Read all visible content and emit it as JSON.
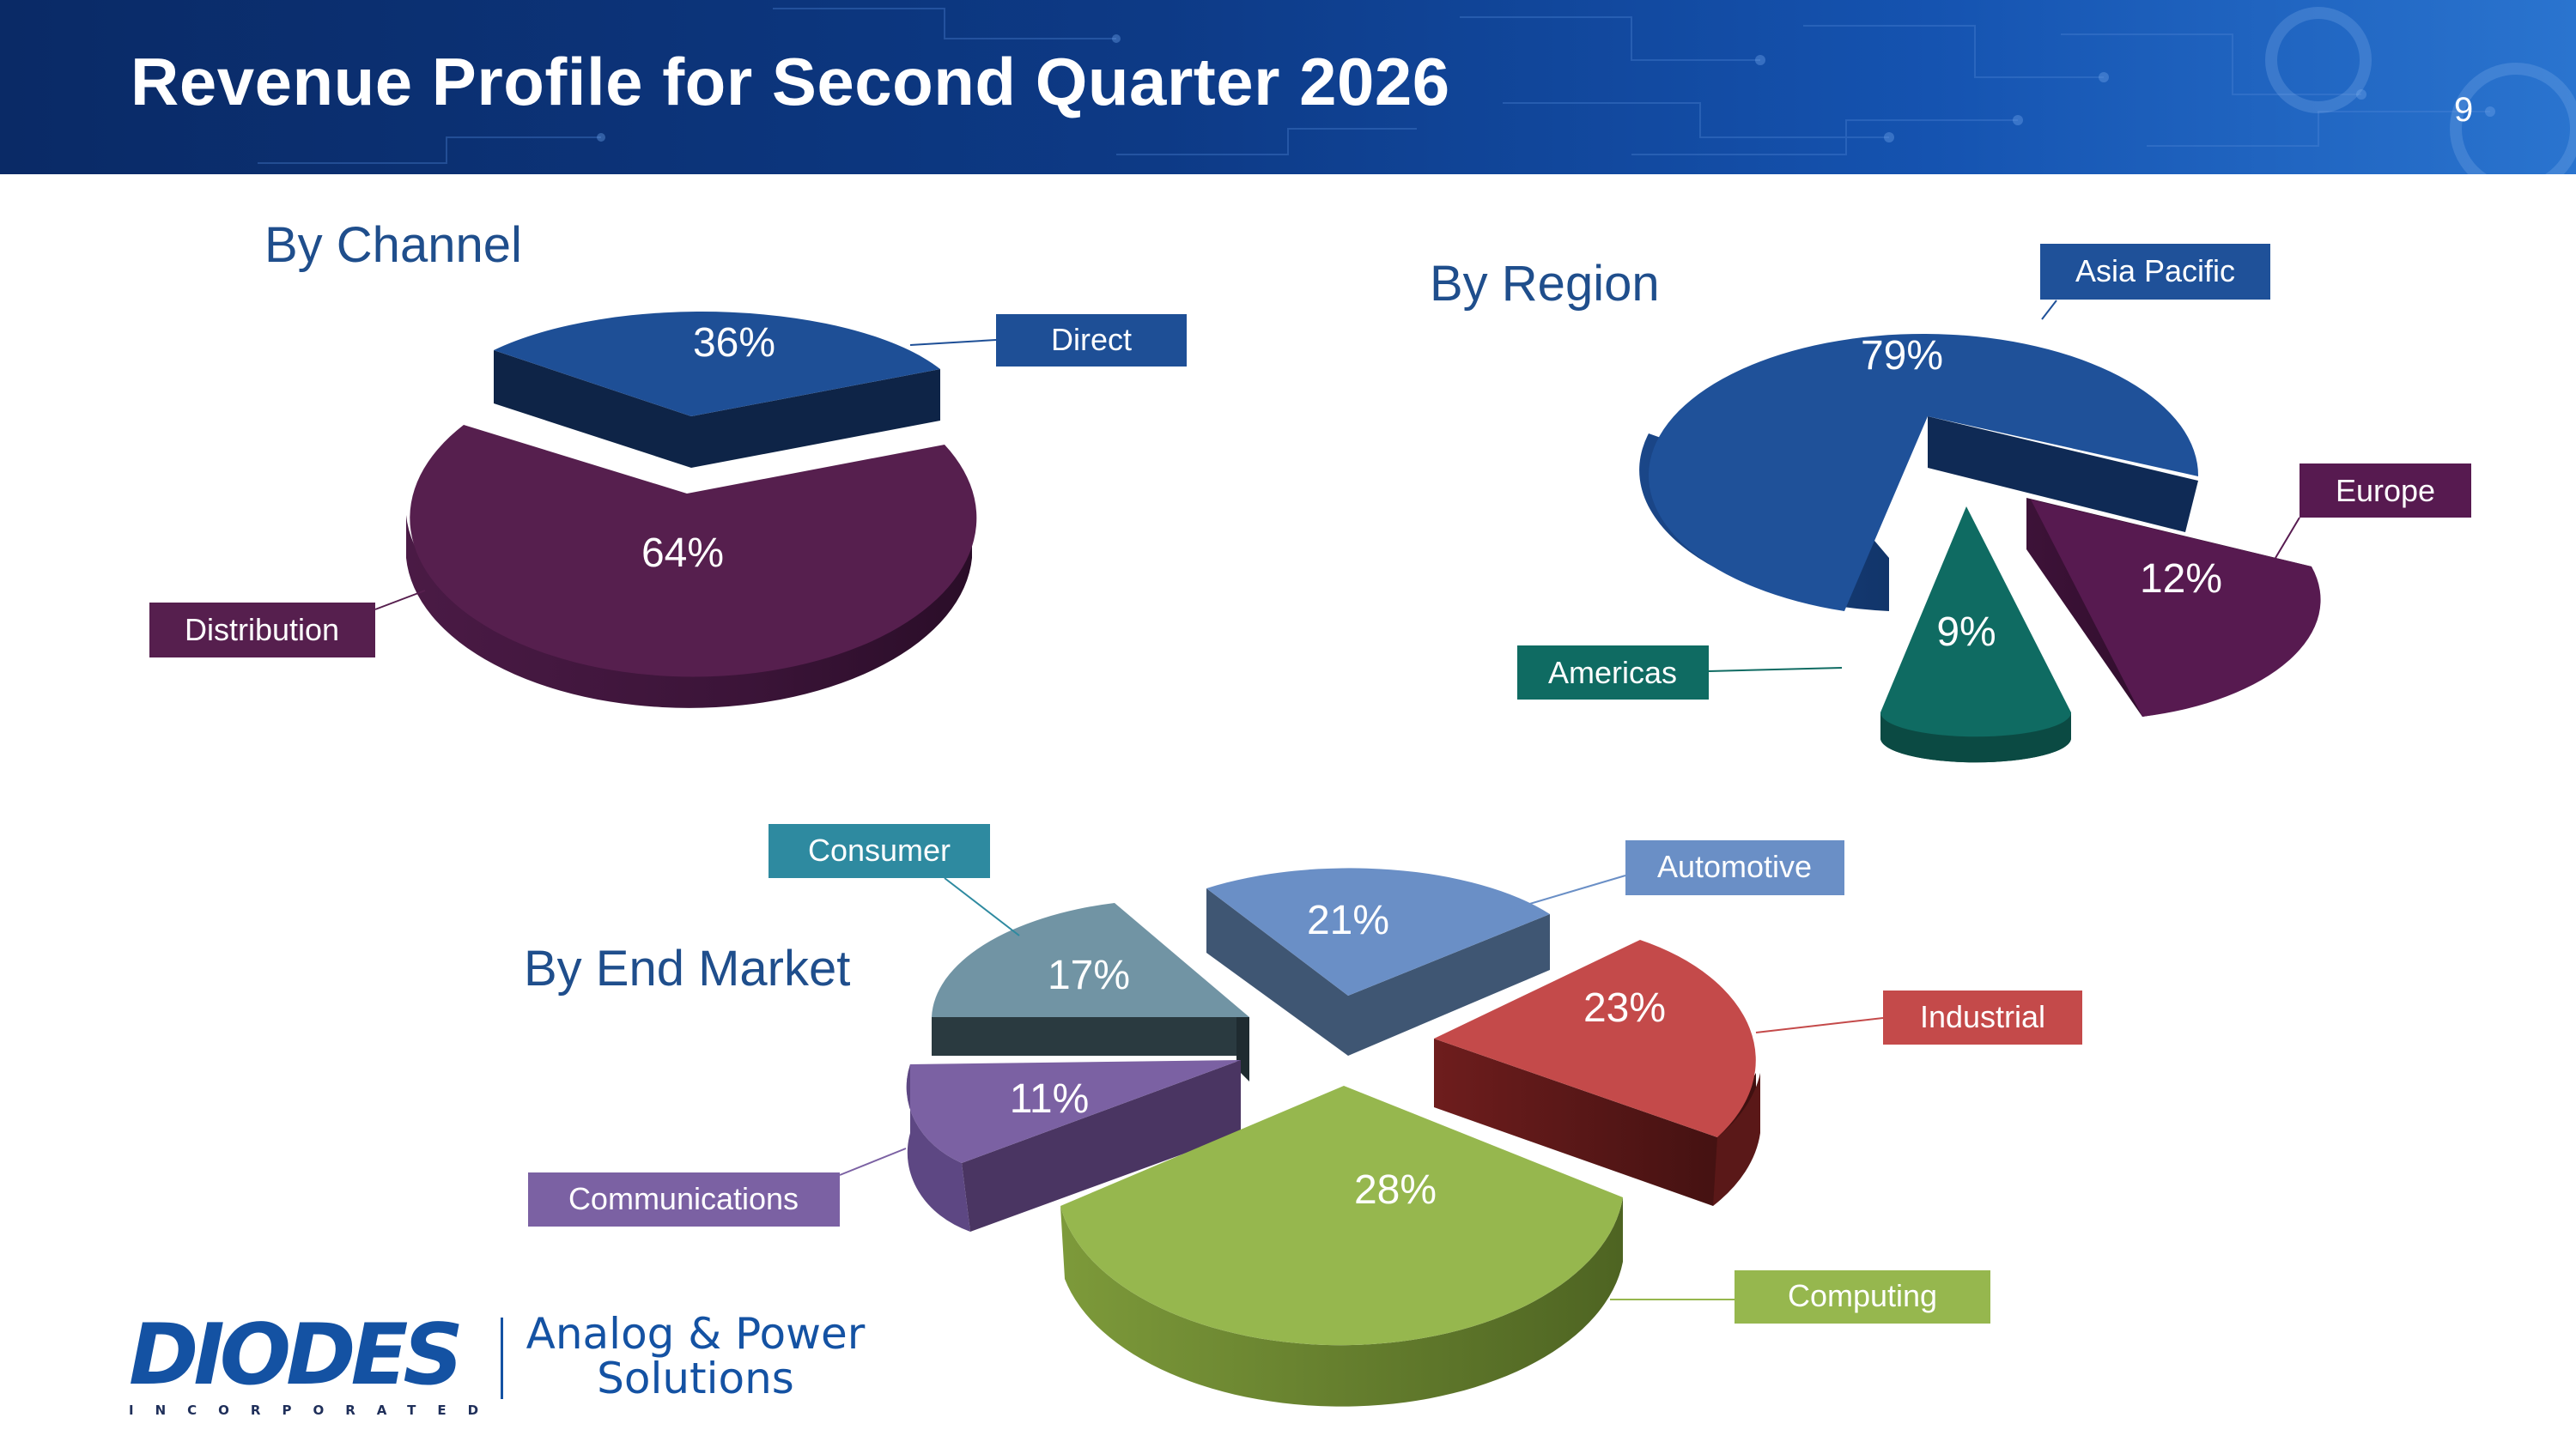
{
  "slide": {
    "title": "Revenue Profile for Second Quarter 2026",
    "page_number": "9"
  },
  "footer": {
    "logo_text": "DIODES",
    "logo_subtext": "INCORPORATED",
    "tagline_line1": "Analog & Power",
    "tagline_line2": "Solutions"
  },
  "chart_data": [
    {
      "type": "pie",
      "style": "3d-exploded",
      "title": "By Channel",
      "slices": [
        {
          "label": "Direct",
          "value": 36,
          "value_label": "36%",
          "color": "#1e4f96",
          "label_color": "#1e4f96"
        },
        {
          "label": "Distribution",
          "value": 64,
          "value_label": "64%",
          "color": "#561f4e",
          "label_color": "#561f4e"
        }
      ]
    },
    {
      "type": "pie",
      "style": "3d-exploded",
      "title": "By Region",
      "slices": [
        {
          "label": "Asia Pacific",
          "value": 79,
          "value_label": "79%",
          "color": "#1f5199",
          "label_color": "#1f5199"
        },
        {
          "label": "Europe",
          "value": 12,
          "value_label": "12%",
          "color": "#571a50",
          "label_color": "#571a50"
        },
        {
          "label": "Americas",
          "value": 9,
          "value_label": "9%",
          "color": "#0f6b62",
          "label_color": "#0f6b62"
        }
      ]
    },
    {
      "type": "pie",
      "style": "3d-exploded",
      "title": "By End Market",
      "slices": [
        {
          "label": "Automotive",
          "value": 21,
          "value_label": "21%",
          "color": "#6a8fc6",
          "label_color": "#6a8fc6"
        },
        {
          "label": "Industrial",
          "value": 23,
          "value_label": "23%",
          "color": "#c44a4a",
          "label_color": "#c44a4a"
        },
        {
          "label": "Computing",
          "value": 28,
          "value_label": "28%",
          "color": "#96b74e",
          "label_color": "#96b74e"
        },
        {
          "label": "Communications",
          "value": 11,
          "value_label": "11%",
          "color": "#7b61a3",
          "label_color": "#7b61a3"
        },
        {
          "label": "Consumer",
          "value": 17,
          "value_label": "17%",
          "color": "#7194a4",
          "label_color": "#2e8aa0"
        }
      ]
    }
  ]
}
